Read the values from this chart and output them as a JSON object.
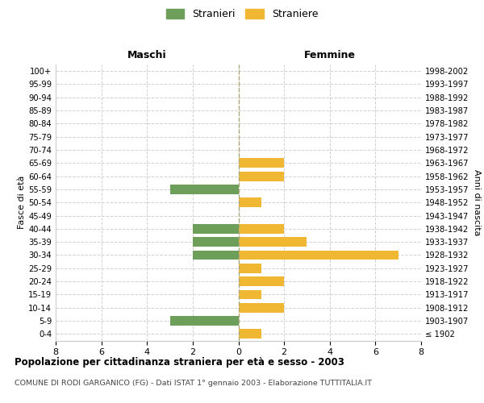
{
  "age_groups": [
    "100+",
    "95-99",
    "90-94",
    "85-89",
    "80-84",
    "75-79",
    "70-74",
    "65-69",
    "60-64",
    "55-59",
    "50-54",
    "45-49",
    "40-44",
    "35-39",
    "30-34",
    "25-29",
    "20-24",
    "15-19",
    "10-14",
    "5-9",
    "0-4"
  ],
  "birth_years": [
    "≤ 1902",
    "1903-1907",
    "1908-1912",
    "1913-1917",
    "1918-1922",
    "1923-1927",
    "1928-1932",
    "1933-1937",
    "1938-1942",
    "1943-1947",
    "1948-1952",
    "1953-1957",
    "1958-1962",
    "1963-1967",
    "1968-1972",
    "1973-1977",
    "1978-1982",
    "1983-1987",
    "1988-1992",
    "1993-1997",
    "1998-2002"
  ],
  "maschi": [
    0,
    0,
    0,
    0,
    0,
    0,
    0,
    0,
    0,
    3,
    0,
    0,
    2,
    2,
    2,
    0,
    0,
    0,
    0,
    3,
    0
  ],
  "femmine": [
    0,
    0,
    0,
    0,
    0,
    0,
    0,
    2,
    2,
    0,
    1,
    0,
    2,
    3,
    7,
    1,
    2,
    1,
    2,
    0,
    1
  ],
  "color_maschi": "#6d9e5a",
  "color_femmine": "#f0b832",
  "title_main": "Popolazione per cittadinanza straniera per età e sesso - 2003",
  "title_sub": "COMUNE DI RODI GARGANICO (FG) - Dati ISTAT 1° gennaio 2003 - Elaborazione TUTTITALIA.IT",
  "legend_maschi": "Stranieri",
  "legend_femmine": "Straniere",
  "label_left": "Maschi",
  "label_right": "Femmine",
  "ylabel_left": "Fasce di età",
  "ylabel_right": "Anni di nascita",
  "xlim": 8,
  "background_color": "#ffffff",
  "grid_color": "#cccccc"
}
